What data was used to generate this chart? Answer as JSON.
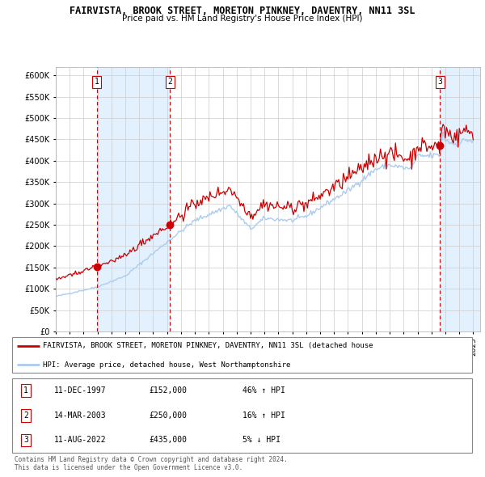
{
  "title1": "FAIRVISTA, BROOK STREET, MORETON PINKNEY, DAVENTRY, NN11 3SL",
  "title2": "Price paid vs. HM Land Registry's House Price Index (HPI)",
  "legend_red": "FAIRVISTA, BROOK STREET, MORETON PINKNEY, DAVENTRY, NN11 3SL (detached house",
  "legend_blue": "HPI: Average price, detached house, West Northamptonshire",
  "transactions": [
    {
      "num": 1,
      "date": "11-DEC-1997",
      "price": 152000,
      "pct": "46%",
      "dir": "↑"
    },
    {
      "num": 2,
      "date": "14-MAR-2003",
      "price": 250000,
      "pct": "16%",
      "dir": "↑"
    },
    {
      "num": 3,
      "date": "11-AUG-2022",
      "price": 435000,
      "pct": "5%",
      "dir": "↓"
    }
  ],
  "transaction_dates_decimal": [
    1997.94,
    2003.2,
    2022.61
  ],
  "ylim": [
    0,
    620000
  ],
  "yticks": [
    0,
    50000,
    100000,
    150000,
    200000,
    250000,
    300000,
    350000,
    400000,
    450000,
    500000,
    550000,
    600000
  ],
  "xlim_start": 1995.0,
  "xlim_end": 2025.5,
  "background_color": "#ffffff",
  "plot_bg_color": "#ffffff",
  "grid_color": "#cccccc",
  "shade_color": "#ddeeff",
  "red_color": "#cc0000",
  "blue_color": "#aaccee",
  "footer": "Contains HM Land Registry data © Crown copyright and database right 2024.\nThis data is licensed under the Open Government Licence v3.0."
}
